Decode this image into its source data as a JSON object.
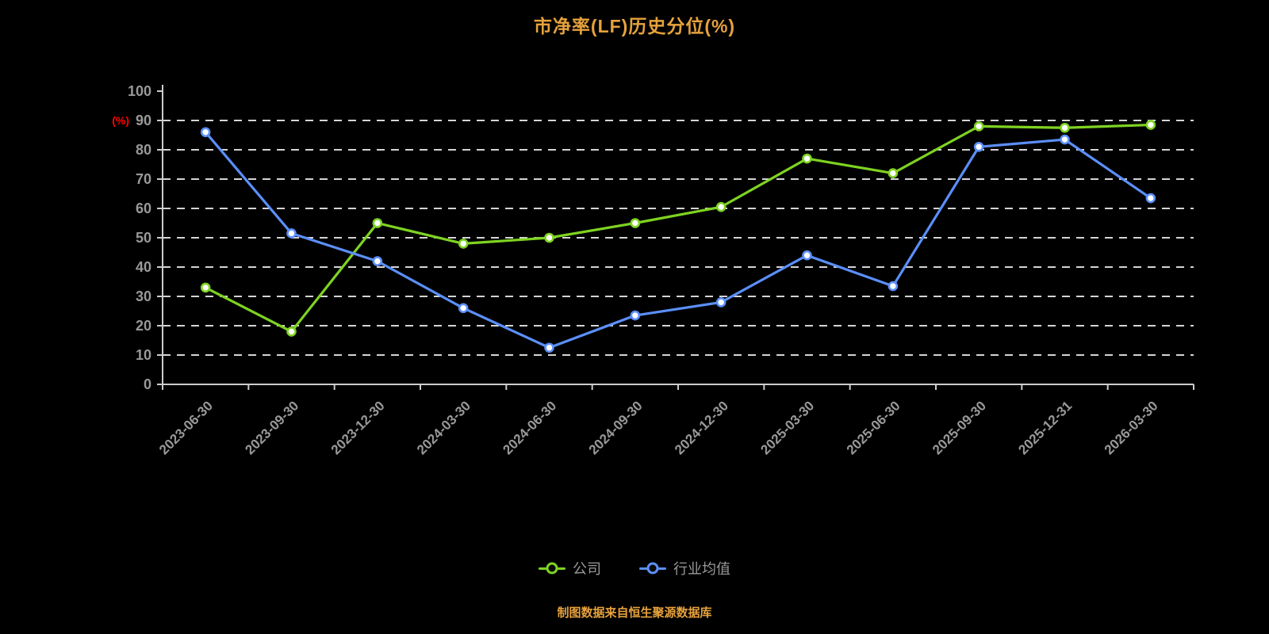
{
  "title": "市净率(LF)历史分位(%)",
  "footer": "制图数据来自恒生聚源数据库",
  "colors": {
    "background": "#000000",
    "title": "#e6a23c",
    "footer": "#e6a23c",
    "axis": "#cccccc",
    "grid": "#f2f2f2",
    "tick_label": "#999999",
    "y_axis_name": "#ff0000",
    "legend_text": "#999999",
    "company": "#7ed321",
    "industry": "#5b8ff9"
  },
  "legend": {
    "items": [
      {
        "label": "公司",
        "color": "#7ed321"
      },
      {
        "label": "行业均值",
        "color": "#5b8ff9"
      }
    ]
  },
  "chart_data": {
    "type": "line",
    "title": "市净率(LF)历史分位(%)",
    "xlabel": "",
    "ylabel": "(%)",
    "ylim": [
      0,
      100
    ],
    "ytick_interval": 10,
    "grid": "horizontal-dashed",
    "legend_position": "bottom",
    "categories": [
      "2023-06-30",
      "2023-09-30",
      "2023-12-30",
      "2024-03-30",
      "2024-06-30",
      "2024-09-30",
      "2024-12-30",
      "2025-03-30",
      "2025-06-30",
      "2025-09-30",
      "2025-12-31",
      "2026-03-30"
    ],
    "series": [
      {
        "name": "公司",
        "color": "#7ed321",
        "values": [
          33,
          18,
          55,
          48,
          50,
          55,
          60.5,
          77,
          72,
          88,
          87.5,
          88.5
        ]
      },
      {
        "name": "行业均值",
        "color": "#5b8ff9",
        "values": [
          86,
          51.5,
          42,
          26,
          12.5,
          23.5,
          28,
          44,
          33.5,
          81,
          83.5,
          63.5
        ]
      }
    ]
  }
}
